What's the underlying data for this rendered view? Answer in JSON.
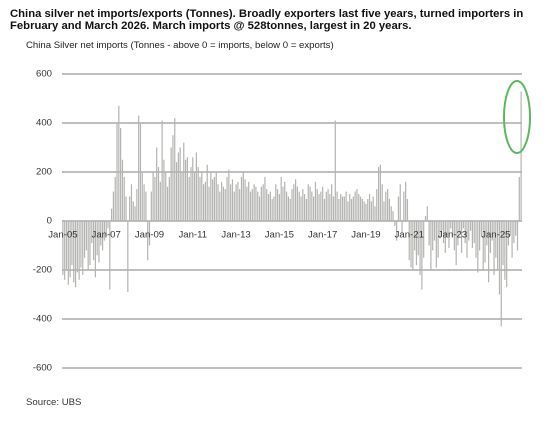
{
  "chart_data": {
    "type": "bar",
    "title": "China silver net imports/exports (Tonnes). Broadly exporters last five years, turned importers in February and March 2026. March imports @ 528tonnes, largest in 20 years.",
    "subtitle": "China Silver net imports (Tonnes - above 0 = imports, below 0 = exports)",
    "source": "Source: UBS",
    "color": "#b3b3b0",
    "ylim": [
      -600,
      600
    ],
    "yticks": [
      600,
      400,
      200,
      0,
      -200,
      -400,
      -600
    ],
    "grid": true,
    "categories": [
      "Jan-05",
      null,
      null,
      null,
      null,
      null,
      null,
      null,
      null,
      null,
      null,
      null,
      null,
      null,
      null,
      null,
      null,
      null,
      null,
      null,
      null,
      null,
      null,
      null,
      "Jan-07",
      null,
      null,
      null,
      null,
      null,
      null,
      null,
      null,
      null,
      null,
      null,
      null,
      null,
      null,
      null,
      null,
      null,
      null,
      null,
      null,
      null,
      null,
      null,
      "Jan-09",
      null,
      null,
      null,
      null,
      null,
      null,
      null,
      null,
      null,
      null,
      null,
      null,
      null,
      null,
      null,
      null,
      null,
      null,
      null,
      null,
      null,
      null,
      null,
      "Jan-11",
      null,
      null,
      null,
      null,
      null,
      null,
      null,
      null,
      null,
      null,
      null,
      null,
      null,
      null,
      null,
      null,
      null,
      null,
      null,
      null,
      null,
      null,
      null,
      "Jan-13",
      null,
      null,
      null,
      null,
      null,
      null,
      null,
      null,
      null,
      null,
      null,
      null,
      null,
      null,
      null,
      null,
      null,
      null,
      null,
      null,
      null,
      null,
      null,
      "Jan-15",
      null,
      null,
      null,
      null,
      null,
      null,
      null,
      null,
      null,
      null,
      null,
      null,
      null,
      null,
      null,
      null,
      null,
      null,
      null,
      null,
      null,
      null,
      null,
      "Jan-17",
      null,
      null,
      null,
      null,
      null,
      null,
      null,
      null,
      null,
      null,
      null,
      null,
      null,
      null,
      null,
      null,
      null,
      null,
      null,
      null,
      null,
      null,
      null,
      "Jan-19",
      null,
      null,
      null,
      null,
      null,
      null,
      null,
      null,
      null,
      null,
      null,
      null,
      null,
      null,
      null,
      null,
      null,
      null,
      null,
      null,
      null,
      null,
      null,
      "Jan-21",
      null,
      null,
      null,
      null,
      null,
      null,
      null,
      null,
      null,
      null,
      null,
      null,
      null,
      null,
      null,
      null,
      null,
      null,
      null,
      null,
      null,
      null,
      null,
      "Jan-23",
      null,
      null,
      null,
      null,
      null,
      null,
      null,
      null,
      null,
      null,
      null,
      null,
      null,
      null,
      null,
      null,
      null,
      null,
      null,
      null,
      null,
      null,
      null,
      "Jan-25",
      null,
      null,
      null,
      null,
      null,
      null,
      null,
      null,
      null,
      null,
      null,
      null,
      null,
      null
    ],
    "values": [
      -220,
      -240,
      -200,
      -260,
      -230,
      -180,
      -250,
      -270,
      -210,
      -240,
      -190,
      -220,
      -150,
      -120,
      -200,
      -180,
      -90,
      -160,
      -230,
      -140,
      -170,
      -100,
      -120,
      -80,
      -60,
      -30,
      -280,
      50,
      120,
      180,
      400,
      470,
      380,
      250,
      180,
      100,
      -290,
      100,
      150,
      80,
      60,
      130,
      430,
      400,
      200,
      150,
      120,
      -160,
      -100,
      120,
      200,
      180,
      300,
      220,
      160,
      410,
      250,
      200,
      140,
      180,
      300,
      350,
      420,
      240,
      280,
      300,
      200,
      320,
      250,
      260,
      180,
      220,
      260,
      200,
      280,
      220,
      180,
      200,
      150,
      160,
      230,
      140,
      200,
      170,
      180,
      200,
      150,
      120,
      160,
      140,
      130,
      180,
      210,
      150,
      170,
      120,
      150,
      160,
      130,
      180,
      200,
      170,
      140,
      160,
      120,
      130,
      150,
      140,
      120,
      100,
      140,
      150,
      180,
      130,
      110,
      120,
      90,
      100,
      150,
      130,
      110,
      180,
      140,
      160,
      120,
      100,
      90,
      130,
      150,
      170,
      140,
      120,
      100,
      130,
      110,
      90,
      150,
      140,
      120,
      100,
      160,
      130,
      110,
      120,
      140,
      90,
      120,
      130,
      110,
      150,
      100,
      410,
      120,
      90,
      110,
      100,
      100,
      120,
      80,
      110,
      90,
      100,
      120,
      130,
      110,
      100,
      90,
      80,
      70,
      90,
      110,
      80,
      100,
      60,
      130,
      220,
      230,
      150,
      80,
      120,
      130,
      90,
      60,
      40,
      -20,
      -80,
      100,
      150,
      -50,
      120,
      160,
      90,
      -160,
      -190,
      -200,
      -120,
      -180,
      -140,
      -220,
      -280,
      -150,
      20,
      60,
      -100,
      -200,
      -120,
      -80,
      -190,
      -150,
      -70,
      -40,
      -90,
      -130,
      -60,
      -110,
      -30,
      -60,
      -120,
      -180,
      -100,
      -50,
      -130,
      -30,
      -90,
      -150,
      -80,
      -40,
      -110,
      -90,
      -150,
      -210,
      -120,
      -60,
      -200,
      -170,
      -100,
      -250,
      -130,
      -80,
      -220,
      -150,
      -200,
      -300,
      -430,
      -180,
      -240,
      -270,
      -100,
      -60,
      -150,
      -90,
      -60,
      -120,
      180,
      528
    ]
  }
}
